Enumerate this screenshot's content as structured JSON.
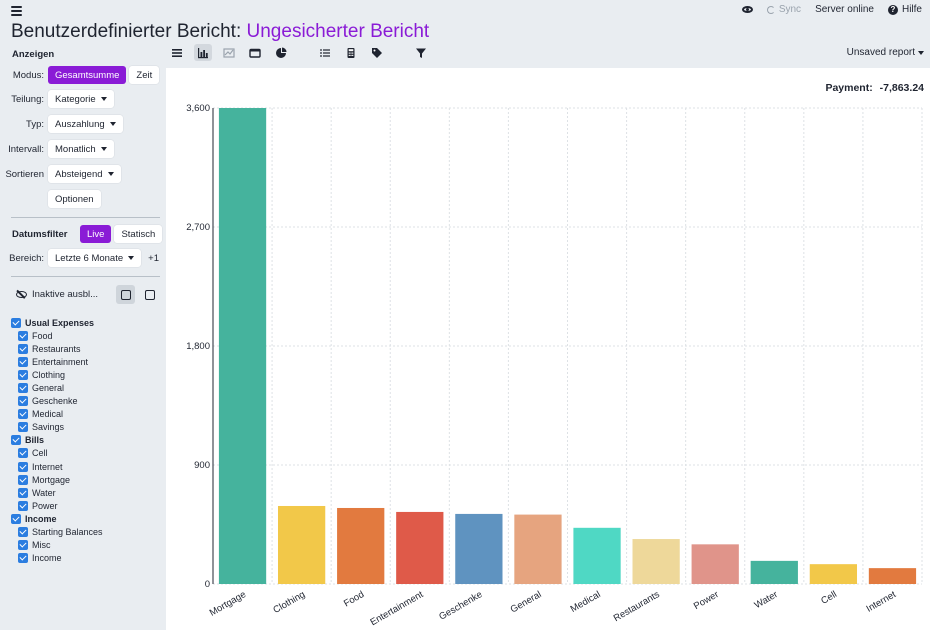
{
  "header": {
    "title_prefix": "Benutzerdefinierter Bericht:",
    "title_accent": "Ungesicherter Bericht",
    "sync_label": "Sync",
    "server_status": "Server online",
    "help_label": "Hilfe",
    "unsaved_label": "Unsaved report"
  },
  "toolbar": [
    "table-icon",
    "bar-chart-icon",
    "area-chart-icon",
    "card-icon",
    "pie-chart-icon",
    "list-icon",
    "calculator-icon",
    "tag-icon",
    "filter-icon"
  ],
  "sidebar": {
    "display_title": "Anzeigen",
    "mode_label": "Modus:",
    "mode_total": "Gesamtsumme",
    "mode_time": "Zeit",
    "split_label": "Teilung:",
    "split_value": "Kategorie",
    "type_label": "Typ:",
    "type_value": "Auszahlung",
    "interval_label": "Intervall:",
    "interval_value": "Monatlich",
    "sort_label": "Sortieren",
    "sort_value": "Absteigend",
    "options_label": "Optionen",
    "date_filter_title": "Datumsfilter",
    "live_label": "Live",
    "static_label": "Statisch",
    "range_label": "Bereich:",
    "range_value": "Letzte 6 Monate",
    "range_extra": "+1",
    "hide_inactive_label": "Inaktive ausbl..."
  },
  "categories": [
    {
      "name": "Usual Expenses",
      "children": [
        "Food",
        "Restaurants",
        "Entertainment",
        "Clothing",
        "General",
        "Geschenke",
        "Medical",
        "Savings"
      ]
    },
    {
      "name": "Bills",
      "children": [
        "Cell",
        "Internet",
        "Mortgage",
        "Water",
        "Power"
      ]
    },
    {
      "name": "Income",
      "children": [
        "Starting Balances",
        "Misc",
        "Income"
      ]
    }
  ],
  "payment": {
    "label": "Payment:",
    "value": "-7,863.24"
  },
  "chart_data": {
    "type": "bar",
    "categories": [
      "Mortgage",
      "Clothing",
      "Food",
      "Entertainment",
      "Geschenke",
      "General",
      "Medical",
      "Restaurants",
      "Power",
      "Water",
      "Cell",
      "Internet"
    ],
    "values": [
      3600,
      590,
      575,
      545,
      530,
      525,
      425,
      340,
      300,
      175,
      150,
      120
    ],
    "colors": [
      "#45b39d",
      "#f2c849",
      "#e27a3f",
      "#df5a49",
      "#5f93c0",
      "#e6a47f",
      "#4fd8c4",
      "#eed89a",
      "#e0948a",
      "#45b39d",
      "#f2c849",
      "#e27a3f"
    ],
    "yticks": [
      "0",
      "900",
      "1,800",
      "2,700",
      "3,600"
    ],
    "ylim": [
      0,
      3600
    ],
    "grid": true
  }
}
